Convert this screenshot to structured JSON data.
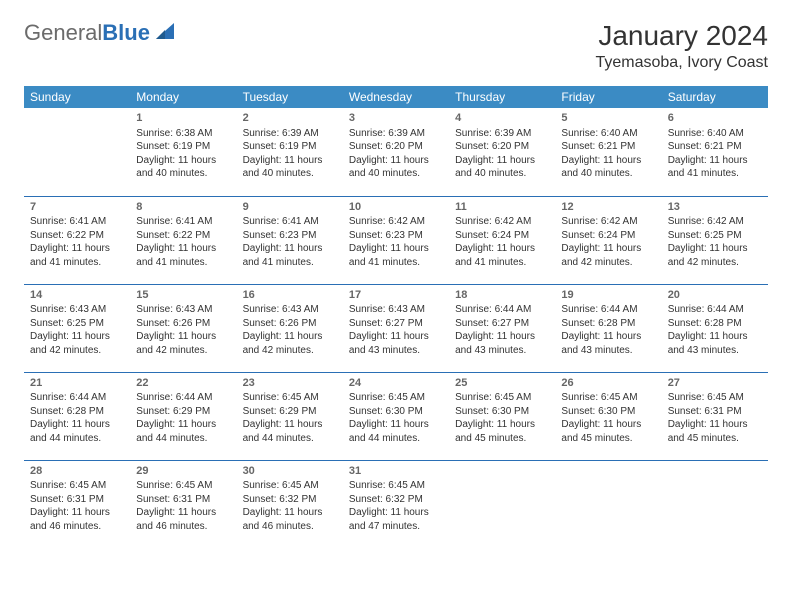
{
  "brand": {
    "name_gray": "General",
    "name_blue": "Blue"
  },
  "title": "January 2024",
  "location": "Tyemasoba, Ivory Coast",
  "colors": {
    "header_bg": "#3b8bc4",
    "header_text": "#ffffff",
    "row_divider": "#2a6fb5",
    "daynum": "#666666",
    "body_text": "#333333",
    "logo_gray": "#6b6b6b",
    "logo_blue": "#2a6fb5",
    "page_bg": "#ffffff"
  },
  "weekdays": [
    "Sunday",
    "Monday",
    "Tuesday",
    "Wednesday",
    "Thursday",
    "Friday",
    "Saturday"
  ],
  "weeks": [
    [
      null,
      {
        "d": "1",
        "sr": "6:38 AM",
        "ss": "6:19 PM",
        "dh": "11",
        "dm": "40"
      },
      {
        "d": "2",
        "sr": "6:39 AM",
        "ss": "6:19 PM",
        "dh": "11",
        "dm": "40"
      },
      {
        "d": "3",
        "sr": "6:39 AM",
        "ss": "6:20 PM",
        "dh": "11",
        "dm": "40"
      },
      {
        "d": "4",
        "sr": "6:39 AM",
        "ss": "6:20 PM",
        "dh": "11",
        "dm": "40"
      },
      {
        "d": "5",
        "sr": "6:40 AM",
        "ss": "6:21 PM",
        "dh": "11",
        "dm": "40"
      },
      {
        "d": "6",
        "sr": "6:40 AM",
        "ss": "6:21 PM",
        "dh": "11",
        "dm": "41"
      }
    ],
    [
      {
        "d": "7",
        "sr": "6:41 AM",
        "ss": "6:22 PM",
        "dh": "11",
        "dm": "41"
      },
      {
        "d": "8",
        "sr": "6:41 AM",
        "ss": "6:22 PM",
        "dh": "11",
        "dm": "41"
      },
      {
        "d": "9",
        "sr": "6:41 AM",
        "ss": "6:23 PM",
        "dh": "11",
        "dm": "41"
      },
      {
        "d": "10",
        "sr": "6:42 AM",
        "ss": "6:23 PM",
        "dh": "11",
        "dm": "41"
      },
      {
        "d": "11",
        "sr": "6:42 AM",
        "ss": "6:24 PM",
        "dh": "11",
        "dm": "41"
      },
      {
        "d": "12",
        "sr": "6:42 AM",
        "ss": "6:24 PM",
        "dh": "11",
        "dm": "42"
      },
      {
        "d": "13",
        "sr": "6:42 AM",
        "ss": "6:25 PM",
        "dh": "11",
        "dm": "42"
      }
    ],
    [
      {
        "d": "14",
        "sr": "6:43 AM",
        "ss": "6:25 PM",
        "dh": "11",
        "dm": "42"
      },
      {
        "d": "15",
        "sr": "6:43 AM",
        "ss": "6:26 PM",
        "dh": "11",
        "dm": "42"
      },
      {
        "d": "16",
        "sr": "6:43 AM",
        "ss": "6:26 PM",
        "dh": "11",
        "dm": "42"
      },
      {
        "d": "17",
        "sr": "6:43 AM",
        "ss": "6:27 PM",
        "dh": "11",
        "dm": "43"
      },
      {
        "d": "18",
        "sr": "6:44 AM",
        "ss": "6:27 PM",
        "dh": "11",
        "dm": "43"
      },
      {
        "d": "19",
        "sr": "6:44 AM",
        "ss": "6:28 PM",
        "dh": "11",
        "dm": "43"
      },
      {
        "d": "20",
        "sr": "6:44 AM",
        "ss": "6:28 PM",
        "dh": "11",
        "dm": "43"
      }
    ],
    [
      {
        "d": "21",
        "sr": "6:44 AM",
        "ss": "6:28 PM",
        "dh": "11",
        "dm": "44"
      },
      {
        "d": "22",
        "sr": "6:44 AM",
        "ss": "6:29 PM",
        "dh": "11",
        "dm": "44"
      },
      {
        "d": "23",
        "sr": "6:45 AM",
        "ss": "6:29 PM",
        "dh": "11",
        "dm": "44"
      },
      {
        "d": "24",
        "sr": "6:45 AM",
        "ss": "6:30 PM",
        "dh": "11",
        "dm": "44"
      },
      {
        "d": "25",
        "sr": "6:45 AM",
        "ss": "6:30 PM",
        "dh": "11",
        "dm": "45"
      },
      {
        "d": "26",
        "sr": "6:45 AM",
        "ss": "6:30 PM",
        "dh": "11",
        "dm": "45"
      },
      {
        "d": "27",
        "sr": "6:45 AM",
        "ss": "6:31 PM",
        "dh": "11",
        "dm": "45"
      }
    ],
    [
      {
        "d": "28",
        "sr": "6:45 AM",
        "ss": "6:31 PM",
        "dh": "11",
        "dm": "46"
      },
      {
        "d": "29",
        "sr": "6:45 AM",
        "ss": "6:31 PM",
        "dh": "11",
        "dm": "46"
      },
      {
        "d": "30",
        "sr": "6:45 AM",
        "ss": "6:32 PM",
        "dh": "11",
        "dm": "46"
      },
      {
        "d": "31",
        "sr": "6:45 AM",
        "ss": "6:32 PM",
        "dh": "11",
        "dm": "47"
      },
      null,
      null,
      null
    ]
  ],
  "labels": {
    "sunrise": "Sunrise:",
    "sunset": "Sunset:",
    "daylight_prefix": "Daylight:",
    "hours_word": "hours",
    "and_word": "and",
    "minutes_word": "minutes."
  }
}
